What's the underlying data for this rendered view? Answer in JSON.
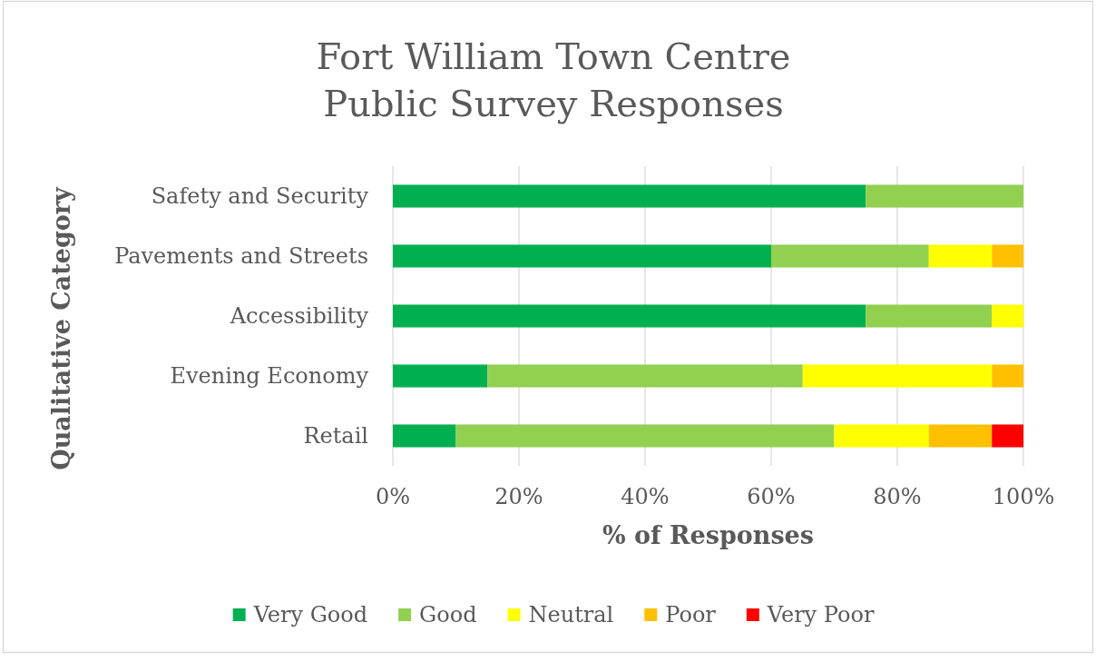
{
  "chart_data": {
    "type": "bar",
    "orientation": "horizontal",
    "stacked": true,
    "title": "Fort William Town Centre\nPublic Survey Responses",
    "xlabel": "% of Responses",
    "ylabel": "Qualitative Category",
    "categories": [
      "Safety and Security",
      "Pavements and Streets",
      "Accessibility",
      "Evening Economy",
      "Retail"
    ],
    "series": [
      {
        "name": "Very Good",
        "color": "#00b050",
        "values": [
          75,
          60,
          75,
          15,
          10
        ]
      },
      {
        "name": "Good",
        "color": "#92d050",
        "values": [
          25,
          25,
          20,
          50,
          60
        ]
      },
      {
        "name": "Neutral",
        "color": "#ffff00",
        "values": [
          0,
          10,
          5,
          30,
          15
        ]
      },
      {
        "name": "Poor",
        "color": "#ffc000",
        "values": [
          0,
          5,
          0,
          5,
          10
        ]
      },
      {
        "name": "Very Poor",
        "color": "#ff0000",
        "values": [
          0,
          0,
          0,
          0,
          5
        ]
      }
    ],
    "xlim": [
      0,
      100
    ],
    "xticks": [
      {
        "value": 0,
        "label": "0%"
      },
      {
        "value": 20,
        "label": "20%"
      },
      {
        "value": 40,
        "label": "40%"
      },
      {
        "value": 60,
        "label": "60%"
      },
      {
        "value": 80,
        "label": "80%"
      },
      {
        "value": 100,
        "label": "100%"
      }
    ],
    "grid": "x",
    "legend": "bottom"
  }
}
